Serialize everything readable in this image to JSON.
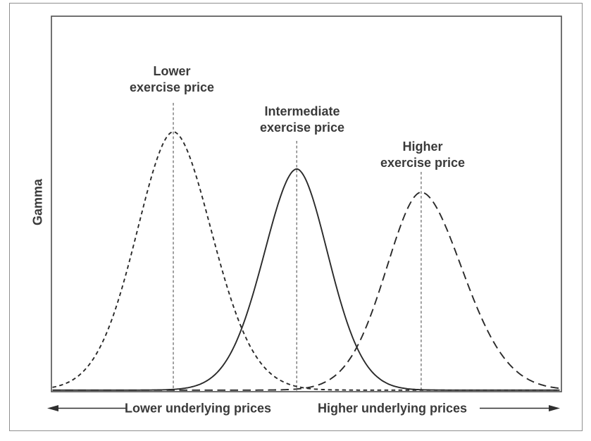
{
  "chart_data": {
    "type": "line",
    "title": "",
    "ylabel": "Gamma",
    "xlabel": "",
    "yticks": [],
    "xticks": [],
    "grid": false,
    "legend": "none",
    "x_axis_annotations": {
      "left_arrow_label": "Lower underlying prices",
      "right_arrow_label": "Higher underlying prices"
    },
    "series": [
      {
        "name": "Lower exercise price",
        "label_line1": "Lower",
        "label_line2": "exercise price",
        "style": "short-dash",
        "peak_x": 0.239,
        "peak_gamma": 1.0,
        "sigma_left": 0.072,
        "sigma_right": 0.076,
        "strike_marker_line": true
      },
      {
        "name": "Intermediate exercise price",
        "label_line1": "Intermediate",
        "label_line2": "exercise price",
        "style": "solid",
        "peak_x": 0.481,
        "peak_gamma": 0.856,
        "sigma_left": 0.065,
        "sigma_right": 0.062,
        "strike_marker_line": true
      },
      {
        "name": "Higher exercise price",
        "label_line1": "Higher",
        "label_line2": "exercise price",
        "style": "long-dash",
        "peak_x": 0.725,
        "peak_gamma": 0.766,
        "sigma_left": 0.069,
        "sigma_right": 0.081,
        "strike_marker_line": true
      }
    ],
    "colors": {
      "curve": "#2a2a2a",
      "marker_line": "#6f6f6f",
      "axis": "#4e4e4e",
      "frame": "#8f8f8f",
      "text": "#3a3a3a",
      "arrow": "#2f2f2f"
    }
  }
}
